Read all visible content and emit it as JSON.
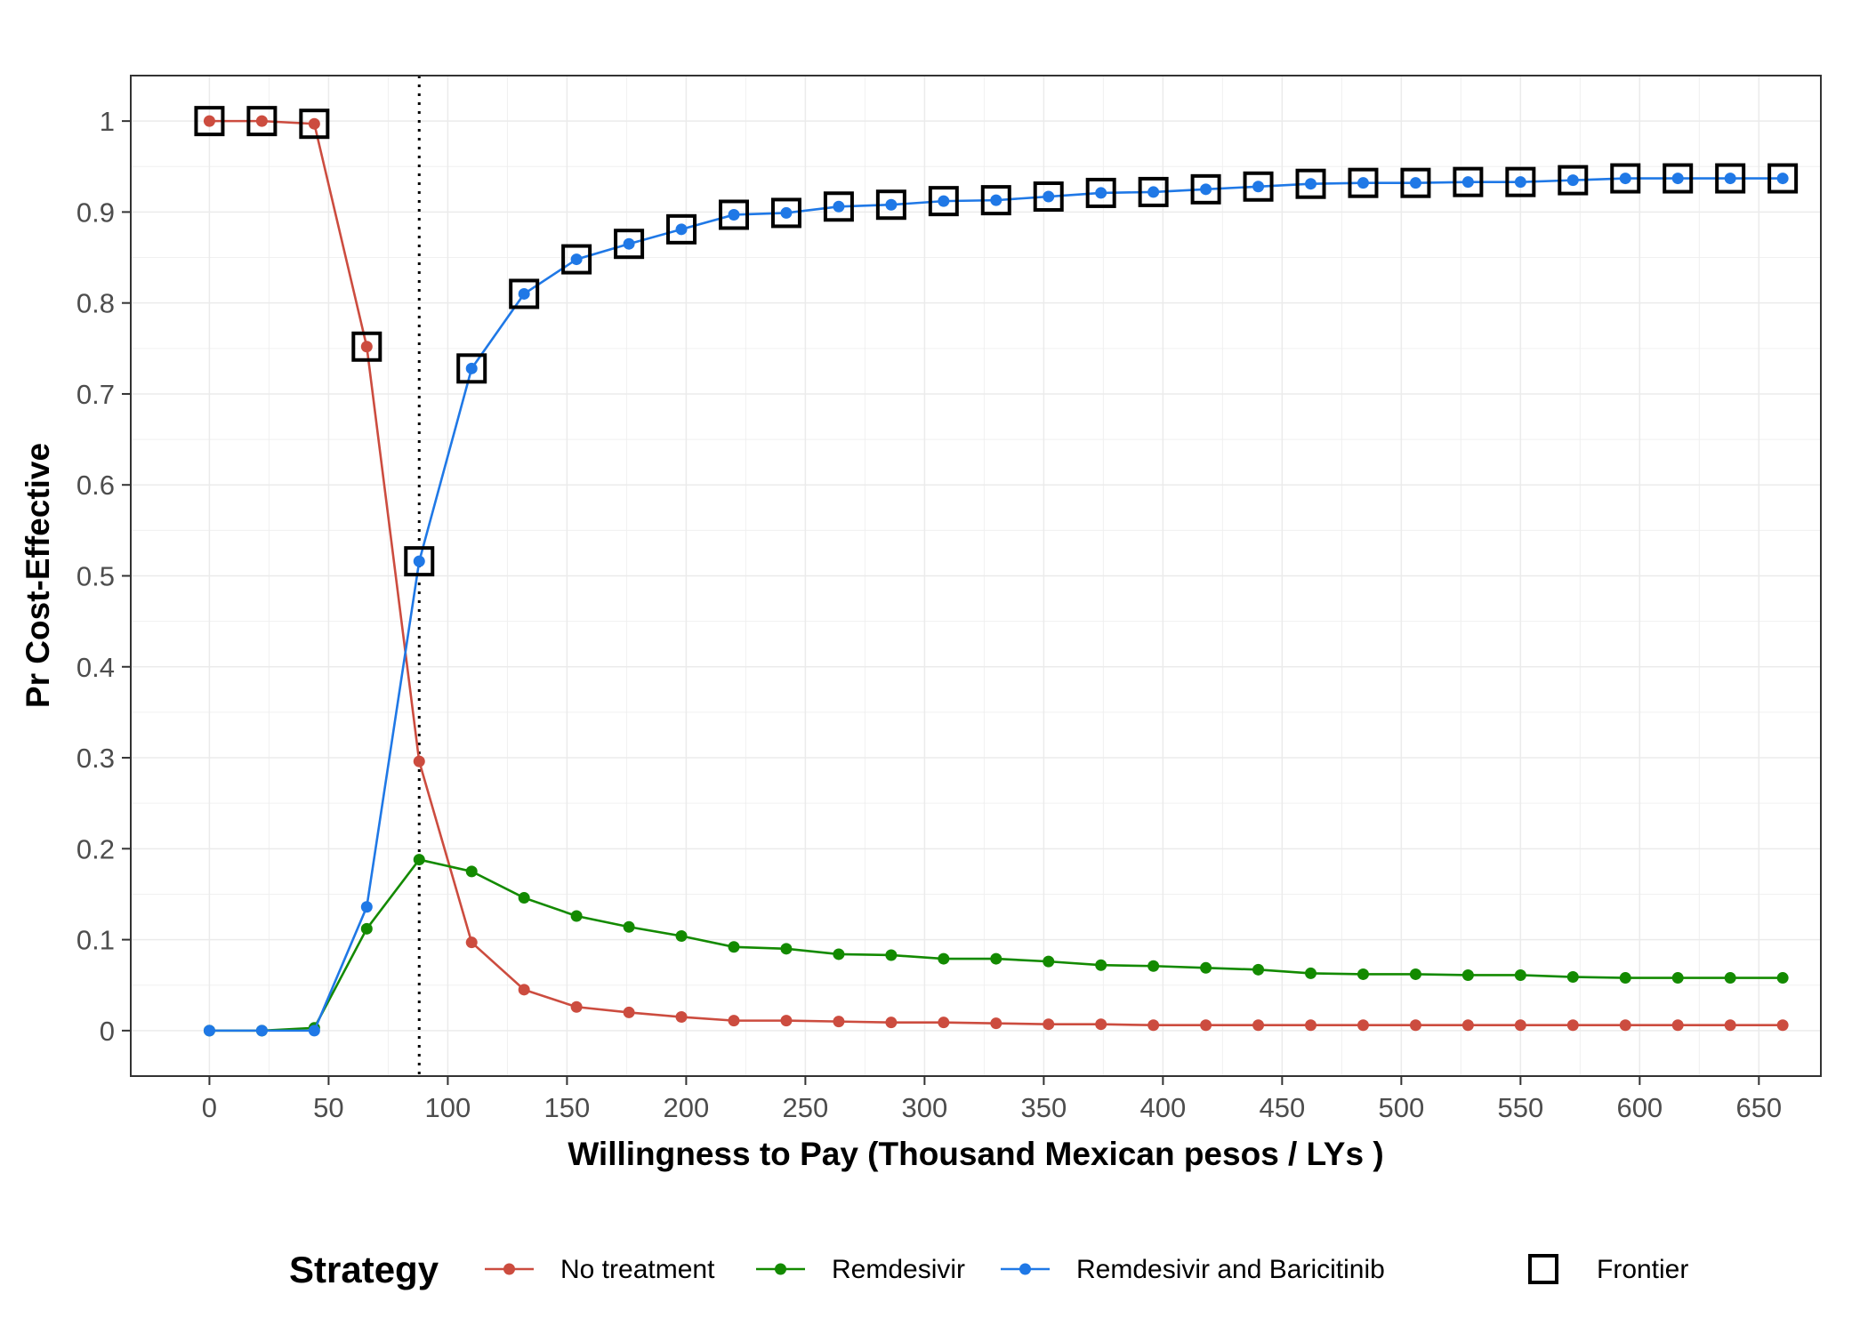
{
  "chart_data": {
    "type": "line",
    "xlabel": "Willingness to Pay (Thousand Mexican pesos / LYs )",
    "ylabel": "Pr Cost-Effective",
    "xlim": [
      -33,
      676
    ],
    "ylim": [
      -0.05,
      1.05
    ],
    "x_ticks": [
      0,
      50,
      100,
      150,
      200,
      250,
      300,
      350,
      400,
      450,
      500,
      550,
      600,
      650
    ],
    "y_ticks": [
      0,
      0.1,
      0.2,
      0.3,
      0.4,
      0.5,
      0.6,
      0.7,
      0.8,
      0.9,
      1
    ],
    "y_tick_labels": [
      "0",
      "0.1",
      "0.2",
      "0.3",
      "0.4",
      "0.5",
      "0.6",
      "0.7",
      "0.8",
      "0.9",
      "1"
    ],
    "grid": true,
    "reference_line_x": 88,
    "x": [
      0,
      22,
      44,
      66,
      88,
      110,
      132,
      154,
      176,
      198,
      220,
      242,
      264,
      286,
      308,
      330,
      352,
      374,
      396,
      418,
      440,
      462,
      484,
      506,
      528,
      550,
      572,
      594,
      616,
      638,
      660
    ],
    "series": [
      {
        "name": "No treatment",
        "color": "#cc4c3f",
        "values": [
          1.0,
          1.0,
          0.997,
          0.752,
          0.296,
          0.097,
          0.045,
          0.026,
          0.02,
          0.015,
          0.011,
          0.011,
          0.01,
          0.009,
          0.009,
          0.008,
          0.007,
          0.007,
          0.006,
          0.006,
          0.006,
          0.006,
          0.006,
          0.006,
          0.006,
          0.006,
          0.006,
          0.006,
          0.006,
          0.006,
          0.006
        ]
      },
      {
        "name": "Remdesivir",
        "color": "#138a00",
        "values": [
          0.0,
          0.0,
          0.003,
          0.112,
          0.188,
          0.175,
          0.146,
          0.126,
          0.114,
          0.104,
          0.092,
          0.09,
          0.084,
          0.083,
          0.079,
          0.079,
          0.076,
          0.072,
          0.071,
          0.069,
          0.067,
          0.063,
          0.062,
          0.062,
          0.061,
          0.061,
          0.059,
          0.058,
          0.058,
          0.058,
          0.058
        ]
      },
      {
        "name": "Remdesivir and Baricitinib",
        "color": "#1f78e6",
        "values": [
          0.0,
          0.0,
          0.0,
          0.136,
          0.516,
          0.728,
          0.81,
          0.848,
          0.865,
          0.881,
          0.897,
          0.899,
          0.906,
          0.908,
          0.912,
          0.913,
          0.917,
          0.921,
          0.922,
          0.925,
          0.928,
          0.931,
          0.932,
          0.932,
          0.933,
          0.933,
          0.935,
          0.937,
          0.937,
          0.937,
          0.937
        ]
      }
    ],
    "frontier": {
      "name": "Frontier",
      "values": [
        1.0,
        1.0,
        0.997,
        0.752,
        0.516,
        0.728,
        0.81,
        0.848,
        0.865,
        0.881,
        0.897,
        0.899,
        0.906,
        0.908,
        0.912,
        0.913,
        0.917,
        0.921,
        0.922,
        0.925,
        0.928,
        0.931,
        0.932,
        0.932,
        0.933,
        0.933,
        0.935,
        0.937,
        0.937,
        0.937,
        0.937
      ]
    },
    "legend": {
      "title": "Strategy",
      "position": "bottom"
    }
  }
}
